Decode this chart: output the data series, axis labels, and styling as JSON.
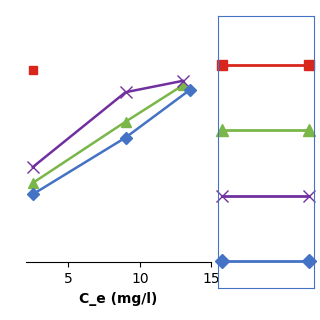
{
  "title": "",
  "xlabel": "C_e (mg/l)",
  "ylabel": "",
  "xlim": [
    2,
    15
  ],
  "ylim": [
    0,
    11
  ],
  "series": [
    {
      "label": "",
      "color": "#d9261c",
      "marker": "s",
      "markersize": 6,
      "x": [
        2.5
      ],
      "y": [
        8.5
      ]
    },
    {
      "label": "",
      "color": "#7ab648",
      "marker": "^",
      "markersize": 7,
      "x": [
        2.5,
        9.0,
        13.0
      ],
      "y": [
        3.5,
        6.2,
        7.8
      ]
    },
    {
      "label": "",
      "color": "#7030a0",
      "marker": "x",
      "markersize": 8,
      "x": [
        2.5,
        9.0,
        13.0
      ],
      "y": [
        4.2,
        7.5,
        8.0
      ]
    },
    {
      "label": "",
      "color": "#4472c4",
      "marker": "D",
      "markersize": 6,
      "x": [
        2.5,
        9.0,
        13.5
      ],
      "y": [
        3.0,
        5.5,
        7.6
      ]
    }
  ],
  "xticks": [
    5,
    10,
    15
  ],
  "background_color": "#ffffff",
  "grid_color": "#b0b0b0",
  "legend_border_color": "#4472c4",
  "legend_markers": [
    {
      "color": "#d9261c",
      "marker": "s",
      "markersize": 7
    },
    {
      "color": "#7ab648",
      "marker": "^",
      "markersize": 8
    },
    {
      "color": "#7030a0",
      "marker": "x",
      "markersize": 8
    },
    {
      "color": "#4472c4",
      "marker": "D",
      "markersize": 7
    }
  ],
  "n_gridlines": 12,
  "linewidth": 1.8
}
